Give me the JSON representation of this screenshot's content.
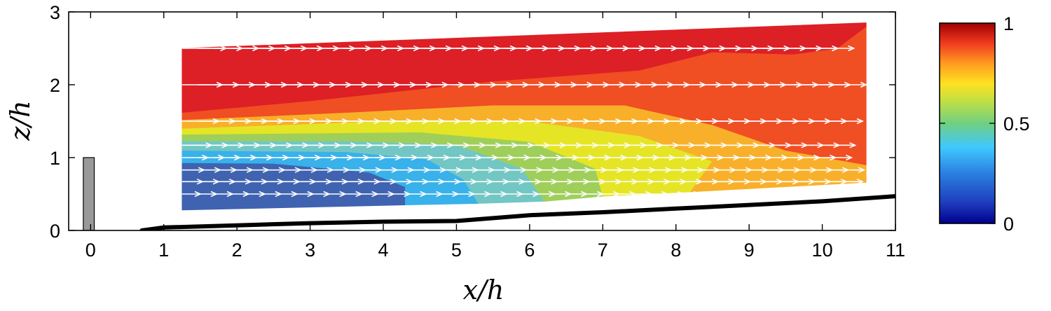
{
  "chart_data": {
    "type": "heatmap",
    "title": "",
    "xlabel": "x/h",
    "ylabel": "z/h",
    "xlim": [
      -0.3,
      11
    ],
    "ylim": [
      0,
      3
    ],
    "x_ticks": [
      0,
      1,
      2,
      3,
      4,
      5,
      6,
      7,
      8,
      9,
      10,
      11
    ],
    "y_ticks": [
      0,
      1,
      2,
      3
    ],
    "colorbar": {
      "range": [
        0,
        1
      ],
      "ticks": [
        0,
        0.5,
        1
      ],
      "colormap": "jet"
    },
    "obstacle": {
      "x": [
        -0.1,
        0.05
      ],
      "z": [
        0,
        1
      ],
      "color": "#999999"
    },
    "ground_profile": {
      "x": [
        0.7,
        1,
        2,
        3,
        4,
        5,
        6,
        7,
        8,
        9,
        10,
        11
      ],
      "z": [
        0.0,
        0.04,
        0.07,
        0.1,
        0.12,
        0.13,
        0.21,
        0.25,
        0.3,
        0.35,
        0.4,
        0.47
      ]
    },
    "measurement_domain": {
      "x": [
        1.25,
        10.6
      ],
      "z_top": [
        2.5,
        2.85
      ],
      "z_bottom": [
        0.26,
        0.66
      ]
    },
    "contour_levels": [
      {
        "level": 0.2,
        "color": "#3f63b0",
        "boundary": [
          [
            1.25,
            0.28
          ],
          [
            4.3,
            0.35
          ],
          [
            4.3,
            0.6
          ],
          [
            3.8,
            0.8
          ],
          [
            2.5,
            0.92
          ],
          [
            1.25,
            0.93
          ]
        ]
      },
      {
        "level": 0.3,
        "color": "#39b1ea",
        "boundary": [
          [
            1.25,
            0.93
          ],
          [
            2.5,
            0.92
          ],
          [
            3.8,
            0.8
          ],
          [
            4.3,
            0.6
          ],
          [
            4.3,
            0.35
          ],
          [
            5.3,
            0.37
          ],
          [
            5.1,
            0.7
          ],
          [
            4.6,
            0.98
          ],
          [
            3.5,
            1.08
          ],
          [
            1.25,
            1.1
          ]
        ]
      },
      {
        "level": 0.4,
        "color": "#72c7c4",
        "boundary": [
          [
            1.25,
            1.1
          ],
          [
            3.5,
            1.08
          ],
          [
            4.6,
            0.98
          ],
          [
            5.1,
            0.7
          ],
          [
            5.3,
            0.37
          ],
          [
            6.2,
            0.4
          ],
          [
            5.9,
            0.85
          ],
          [
            5.0,
            1.18
          ],
          [
            3.5,
            1.23
          ],
          [
            1.25,
            1.23
          ]
        ]
      },
      {
        "level": 0.5,
        "color": "#9fcf5a",
        "boundary": [
          [
            1.25,
            1.23
          ],
          [
            3.5,
            1.23
          ],
          [
            5.0,
            1.18
          ],
          [
            5.9,
            0.85
          ],
          [
            6.2,
            0.4
          ],
          [
            7.0,
            0.47
          ],
          [
            6.9,
            0.85
          ],
          [
            6.0,
            1.22
          ],
          [
            4.5,
            1.35
          ],
          [
            1.25,
            1.32
          ]
        ]
      },
      {
        "level": 0.6,
        "color": "#e5e525",
        "boundary": [
          [
            1.25,
            1.32
          ],
          [
            4.5,
            1.35
          ],
          [
            6.0,
            1.22
          ],
          [
            6.9,
            0.85
          ],
          [
            7.0,
            0.47
          ],
          [
            8.2,
            0.53
          ],
          [
            8.5,
            0.95
          ],
          [
            7.5,
            1.3
          ],
          [
            6.0,
            1.5
          ],
          [
            4.5,
            1.52
          ],
          [
            1.25,
            1.4
          ]
        ]
      },
      {
        "level": 0.7,
        "color": "#f8b02a",
        "boundary": [
          [
            1.25,
            1.4
          ],
          [
            4.5,
            1.52
          ],
          [
            6.0,
            1.5
          ],
          [
            7.5,
            1.3
          ],
          [
            8.5,
            0.95
          ],
          [
            8.2,
            0.53
          ],
          [
            10.6,
            0.66
          ],
          [
            10.6,
            0.9
          ],
          [
            9.5,
            1.1
          ],
          [
            8.5,
            1.45
          ],
          [
            7.3,
            1.72
          ],
          [
            5.5,
            1.72
          ],
          [
            3.5,
            1.62
          ],
          [
            1.25,
            1.52
          ]
        ]
      },
      {
        "level": 0.8,
        "color": "#f04e23",
        "boundary": [
          [
            1.25,
            1.52
          ],
          [
            3.5,
            1.62
          ],
          [
            5.5,
            1.72
          ],
          [
            7.3,
            1.72
          ],
          [
            8.5,
            1.45
          ],
          [
            9.5,
            1.1
          ],
          [
            10.6,
            0.9
          ],
          [
            10.6,
            2.8
          ],
          [
            10.2,
            2.5
          ],
          [
            9.6,
            2.42
          ],
          [
            8.5,
            2.45
          ],
          [
            7.5,
            2.2
          ],
          [
            5.5,
            2.05
          ],
          [
            3.0,
            1.78
          ],
          [
            1.25,
            1.62
          ]
        ]
      },
      {
        "level": 0.9,
        "color": "#dd1f26",
        "boundary": [
          [
            1.25,
            1.62
          ],
          [
            3.0,
            1.78
          ],
          [
            5.5,
            2.05
          ],
          [
            7.5,
            2.2
          ],
          [
            8.5,
            2.45
          ],
          [
            9.6,
            2.42
          ],
          [
            10.2,
            2.5
          ],
          [
            10.6,
            2.8
          ],
          [
            10.6,
            2.85
          ],
          [
            1.25,
            2.5
          ]
        ]
      }
    ],
    "velocity_rows": [
      {
        "z": 0.5,
        "length": 0.25,
        "x_max": 10.6,
        "x_min_start": 1.25
      },
      {
        "z": 0.67,
        "length": 0.28,
        "x_max": 10.6
      },
      {
        "z": 0.83,
        "length": 0.3,
        "x_max": 10.6
      },
      {
        "z": 1.0,
        "length": 0.35,
        "x_max": 10.6
      },
      {
        "z": 1.17,
        "length": 0.4,
        "x_max": 10.6
      },
      {
        "z": 1.5,
        "length": 0.5,
        "x_max": 10.6
      },
      {
        "z": 2.0,
        "length": 0.55,
        "x_max": 10.6
      },
      {
        "z": 2.5,
        "length": 0.6,
        "x_max": 10.6
      }
    ]
  }
}
